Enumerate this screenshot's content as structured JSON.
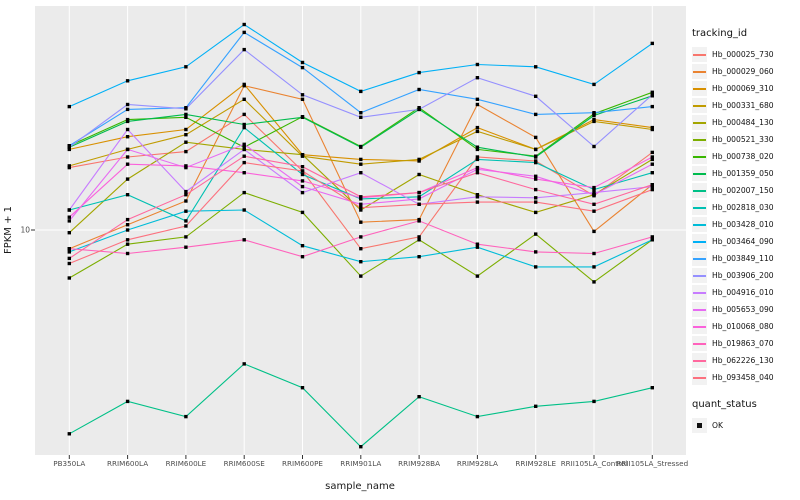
{
  "chart_data": {
    "type": "line",
    "title": "",
    "xlabel": "sample_name",
    "ylabel": "FPKM + 1",
    "y_scale": "log10",
    "ylim_log": [
      0.19,
      1.72
    ],
    "grid": "major-on",
    "legend_position": "right",
    "legend_title": "tracking_id",
    "panel_bg": "#EBEBEB",
    "gridline_color": "#FFFFFF",
    "axis_text_color": "#4D4D4D",
    "axis_title_color": "#1a1a1a",
    "tick_color": "#333333",
    "point_color": "#000000",
    "y_axis": {
      "tick_values": [
        10
      ],
      "tick_labels": [
        "10"
      ]
    },
    "categories": [
      "PB350LA",
      "RRIM600LA",
      "RRIM600LE",
      "RRIM600SE",
      "RRIM600PE",
      "RRIM901LA",
      "RRIM928BA",
      "RRIM928LA",
      "RRIM928LE",
      "RRII105LA_Control",
      "RRII105LA_Stressed"
    ],
    "series": [
      {
        "name": "Hb_000025_730",
        "color": "#F8766D",
        "values": [
          15.9,
          17.2,
          17.9,
          23.6,
          15.5,
          8.7,
          9.5,
          17.2,
          16.7,
          12.9,
          17.8
        ]
      },
      {
        "name": "Hb_000029_060",
        "color": "#EA8331",
        "values": [
          8.7,
          10.4,
          12.4,
          29.2,
          26.4,
          10.6,
          10.8,
          25.4,
          19.9,
          9.9,
          14.0
        ]
      },
      {
        "name": "Hb_000069_310",
        "color": "#D89000",
        "values": [
          18.2,
          20.0,
          21.1,
          29.5,
          17.5,
          16.9,
          16.7,
          21.4,
          18.2,
          22.7,
          21.4
        ]
      },
      {
        "name": "Hb_000331_680",
        "color": "#C09B00",
        "values": [
          16.1,
          18.2,
          20.3,
          26.4,
          17.3,
          16.3,
          16.9,
          20.8,
          18.2,
          22.4,
          21.1
        ]
      },
      {
        "name": "Hb_000484_130",
        "color": "#A3A500",
        "values": [
          9.8,
          14.6,
          19.2,
          18.2,
          17.5,
          11.6,
          15.1,
          13.0,
          11.4,
          13.0,
          16.9
        ]
      },
      {
        "name": "Hb_000521_330",
        "color": "#7CAE00",
        "values": [
          7.0,
          9.0,
          9.5,
          13.2,
          11.4,
          7.1,
          9.3,
          7.1,
          9.7,
          6.8,
          9.3
        ]
      },
      {
        "name": "Hb_000738_020",
        "color": "#39B600",
        "values": [
          18.7,
          22.7,
          23.1,
          18.5,
          23.2,
          18.6,
          24.8,
          18.2,
          17.3,
          23.7,
          27.8
        ]
      },
      {
        "name": "Hb_001359_050",
        "color": "#00BB4E",
        "values": [
          18.5,
          22.4,
          23.6,
          21.9,
          23.1,
          18.5,
          24.5,
          18.5,
          17.2,
          23.4,
          27.1
        ]
      },
      {
        "name": "Hb_002007_150",
        "color": "#00C087",
        "values": [
          2.2,
          2.8,
          2.5,
          3.7,
          3.1,
          2.0,
          2.9,
          2.5,
          2.7,
          2.8,
          3.1
        ]
      },
      {
        "name": "Hb_002818_030",
        "color": "#00C0B2",
        "values": [
          11.6,
          13.0,
          10.7,
          21.4,
          15.1,
          12.6,
          12.8,
          16.9,
          16.5,
          13.5,
          15.3
        ]
      },
      {
        "name": "Hb_003428_010",
        "color": "#00BCD8",
        "values": [
          8.5,
          10.0,
          11.5,
          11.6,
          8.9,
          7.9,
          8.2,
          8.8,
          7.6,
          7.6,
          9.3
        ]
      },
      {
        "name": "Hb_003464_090",
        "color": "#00B0F6",
        "values": [
          25.0,
          30.3,
          33.6,
          46.0,
          34.7,
          28.0,
          32.2,
          34.2,
          33.6,
          29.5,
          40.0
        ]
      },
      {
        "name": "Hb_003849_110",
        "color": "#35A2FF",
        "values": [
          18.7,
          24.5,
          24.8,
          43.4,
          33.4,
          23.9,
          28.4,
          26.4,
          23.6,
          23.9,
          25.0
        ]
      },
      {
        "name": "Hb_003906_200",
        "color": "#9590FF",
        "values": [
          18.5,
          25.4,
          24.6,
          38.2,
          27.3,
          23.1,
          24.5,
          31.0,
          27.0,
          18.6,
          27.3
        ]
      },
      {
        "name": "Hb_004916_010",
        "color": "#C77CFF",
        "values": [
          11.6,
          21.1,
          13.3,
          18.2,
          13.2,
          15.3,
          12.1,
          12.8,
          12.7,
          13.2,
          13.8
        ]
      },
      {
        "name": "Hb_005653_090",
        "color": "#E76BF3",
        "values": [
          10.7,
          18.2,
          15.9,
          18.9,
          13.8,
          12.1,
          12.6,
          15.7,
          14.9,
          13.0,
          16.3
        ]
      },
      {
        "name": "Hb_010068_080",
        "color": "#FA62DB",
        "values": [
          11.0,
          16.3,
          16.1,
          15.3,
          14.4,
          12.7,
          13.2,
          15.9,
          14.6,
          13.7,
          17.2
        ]
      },
      {
        "name": "Hb_019863_070",
        "color": "#FF62BC",
        "values": [
          8.7,
          8.4,
          8.8,
          9.3,
          8.2,
          9.5,
          10.7,
          9.0,
          8.5,
          8.4,
          9.5
        ]
      },
      {
        "name": "Hb_062226_130",
        "color": "#FF689E",
        "values": [
          8.1,
          10.8,
          13.0,
          17.3,
          16.0,
          12.8,
          13.2,
          15.3,
          13.5,
          12.1,
          14.0
        ]
      },
      {
        "name": "Hb_093458_040",
        "color": "#FC717F",
        "values": [
          7.8,
          9.3,
          10.3,
          16.5,
          15.5,
          11.8,
          12.1,
          12.3,
          12.3,
          11.5,
          13.5
        ]
      }
    ],
    "quant_legend": {
      "title": "quant_status",
      "items": [
        {
          "label": "OK",
          "marker": "black-square"
        }
      ]
    }
  }
}
